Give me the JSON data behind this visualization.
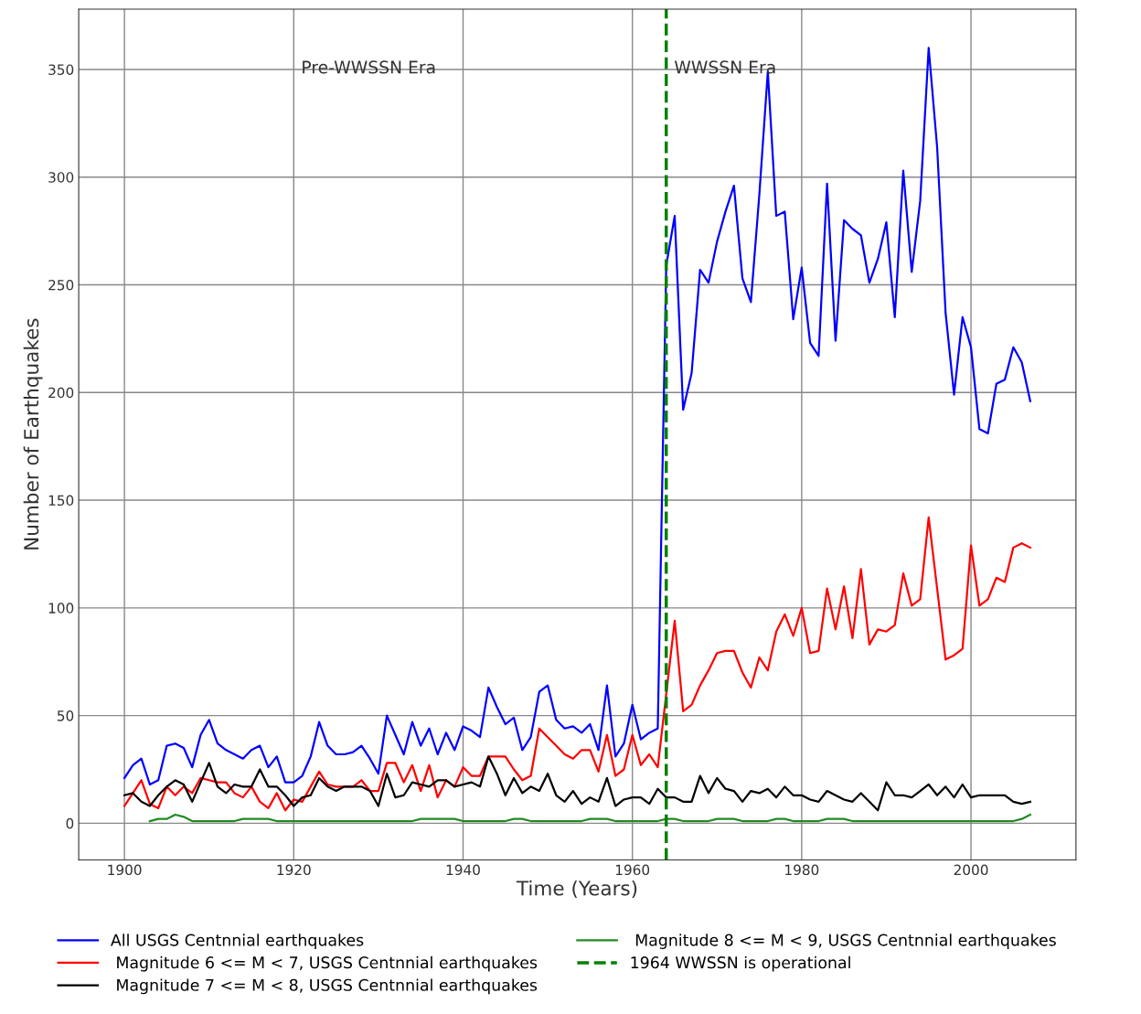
{
  "chart_data": {
    "type": "line",
    "xlabel": "Time (Years)",
    "ylabel": "Number of Earthquakes",
    "x": [
      1900,
      1901,
      1902,
      1903,
      1904,
      1905,
      1906,
      1907,
      1908,
      1909,
      1910,
      1911,
      1912,
      1913,
      1914,
      1915,
      1916,
      1917,
      1918,
      1919,
      1920,
      1921,
      1922,
      1923,
      1924,
      1925,
      1926,
      1927,
      1928,
      1929,
      1930,
      1931,
      1932,
      1933,
      1934,
      1935,
      1936,
      1937,
      1938,
      1939,
      1940,
      1941,
      1942,
      1943,
      1944,
      1945,
      1946,
      1947,
      1948,
      1949,
      1950,
      1951,
      1952,
      1953,
      1954,
      1955,
      1956,
      1957,
      1958,
      1959,
      1960,
      1961,
      1962,
      1963,
      1964,
      1965,
      1966,
      1967,
      1968,
      1969,
      1970,
      1971,
      1972,
      1973,
      1974,
      1975,
      1976,
      1977,
      1978,
      1979,
      1980,
      1981,
      1982,
      1983,
      1984,
      1985,
      1986,
      1987,
      1988,
      1989,
      1990,
      1991,
      1992,
      1993,
      1994,
      1995,
      1996,
      1997,
      1998,
      1999,
      2000,
      2001,
      2002,
      2003,
      2004,
      2005,
      2006,
      2007
    ],
    "series": [
      {
        "name": "All USGS Centnnial earthquakes",
        "color": "#0000ff",
        "values": [
          21,
          27,
          30,
          18,
          20,
          36,
          37,
          35,
          26,
          41,
          48,
          37,
          34,
          32,
          30,
          34,
          36,
          26,
          31,
          19,
          19,
          22,
          31,
          47,
          36,
          32,
          32,
          33,
          36,
          30,
          23,
          50,
          41,
          32,
          47,
          36,
          44,
          32,
          42,
          34,
          45,
          43,
          40,
          63,
          54,
          46,
          49,
          34,
          40,
          61,
          64,
          48,
          44,
          45,
          42,
          46,
          34,
          64,
          31,
          37,
          55,
          39,
          42,
          44,
          259,
          282,
          192,
          209,
          257,
          251,
          270,
          284,
          296,
          253,
          242,
          292,
          349,
          282,
          284,
          234,
          258,
          223,
          217,
          297,
          224,
          280,
          276,
          273,
          251,
          262,
          279,
          235,
          303,
          256,
          289,
          360,
          314,
          237,
          199,
          235,
          221,
          183,
          181,
          204,
          206,
          221,
          214,
          196
        ]
      },
      {
        "name": " Magnitude 6 <= M < 7, USGS Centnnial earthquakes",
        "color": "#ff0000",
        "values": [
          8,
          14,
          20,
          9,
          7,
          17,
          13,
          17,
          14,
          21,
          20,
          19,
          19,
          14,
          12,
          17,
          10,
          7,
          14,
          6,
          11,
          10,
          17,
          24,
          18,
          17,
          17,
          17,
          20,
          15,
          15,
          28,
          28,
          19,
          27,
          15,
          27,
          12,
          20,
          17,
          26,
          22,
          22,
          31,
          31,
          31,
          25,
          20,
          22,
          44,
          40,
          36,
          32,
          30,
          34,
          34,
          24,
          41,
          22,
          25,
          41,
          27,
          32,
          26,
          60,
          94,
          52,
          55,
          64,
          71,
          79,
          80,
          80,
          70,
          63,
          77,
          71,
          89,
          97,
          87,
          100,
          79,
          80,
          109,
          90,
          110,
          86,
          118,
          83,
          90,
          89,
          92,
          116,
          101,
          104,
          142,
          109,
          76,
          78,
          81,
          129,
          101,
          104,
          114,
          112,
          128,
          130,
          128
        ]
      },
      {
        "name": " Magnitude 7 <= M < 8, USGS Centnnial earthquakes",
        "color": "#000000",
        "values": [
          13,
          14,
          10,
          8,
          13,
          17,
          20,
          18,
          10,
          19,
          28,
          17,
          14,
          18,
          17,
          17,
          25,
          17,
          17,
          13,
          8,
          12,
          13,
          21,
          17,
          15,
          17,
          17,
          17,
          15,
          8,
          23,
          12,
          13,
          19,
          18,
          17,
          20,
          20,
          17,
          18,
          19,
          17,
          31,
          23,
          13,
          21,
          14,
          17,
          15,
          23,
          13,
          10,
          15,
          9,
          12,
          10,
          21,
          8,
          11,
          12,
          12,
          9,
          16,
          12,
          12,
          10,
          10,
          22,
          14,
          21,
          16,
          15,
          10,
          15,
          14,
          16,
          12,
          17,
          13,
          13,
          11,
          10,
          15,
          13,
          11,
          10,
          14,
          10,
          6,
          19,
          13,
          13,
          12,
          15,
          18,
          13,
          17,
          12,
          18,
          12,
          13,
          13,
          13,
          13,
          10,
          9,
          10
        ]
      },
      {
        "name": " Magnitude 8 <= M < 9, USGS Centnnial earthquakes",
        "color": "#228b22",
        "values": [
          null,
          null,
          null,
          1,
          2,
          2,
          4,
          3,
          1,
          1,
          1,
          1,
          1,
          1,
          2,
          2,
          2,
          2,
          1,
          1,
          1,
          1,
          1,
          1,
          1,
          1,
          1,
          1,
          1,
          1,
          1,
          1,
          1,
          1,
          1,
          2,
          2,
          2,
          2,
          2,
          1,
          1,
          1,
          1,
          1,
          1,
          2,
          2,
          1,
          1,
          1,
          1,
          1,
          1,
          1,
          2,
          2,
          2,
          1,
          1,
          1,
          1,
          1,
          1,
          2,
          2,
          1,
          1,
          1,
          1,
          2,
          2,
          2,
          1,
          1,
          1,
          1,
          2,
          2,
          1,
          1,
          1,
          1,
          2,
          2,
          2,
          1,
          1,
          1,
          1,
          1,
          1,
          1,
          1,
          1,
          1,
          1,
          1,
          1,
          1,
          1,
          1,
          1,
          1,
          1,
          1,
          2,
          4
        ]
      }
    ],
    "ref_lines": [
      {
        "axis": "x",
        "value": 1964,
        "label": "1964 WWSSN is operational",
        "color": "#008000",
        "line_style": "dashed"
      }
    ],
    "annotations": [
      "Pre-WWSSN Era",
      "WWSSN Era"
    ],
    "xlim": [
      1894.6,
      2012.4
    ],
    "ylim": [
      -17,
      378
    ],
    "xticks": [
      1900,
      1920,
      1940,
      1960,
      1980,
      2000
    ],
    "yticks": [
      0,
      50,
      100,
      150,
      200,
      250,
      300,
      350
    ],
    "grid": true,
    "legend": "bottom",
    "marker": "none",
    "line_style": "solid"
  }
}
